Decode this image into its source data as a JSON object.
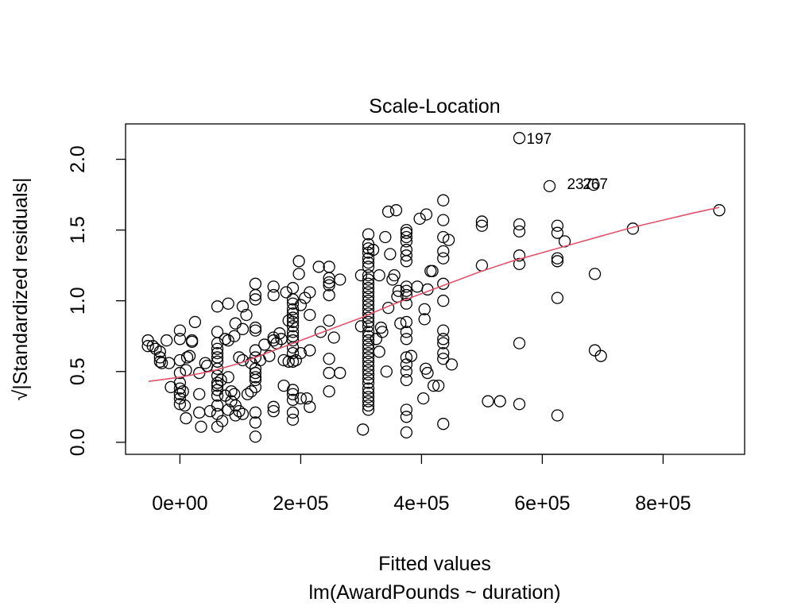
{
  "chart_data": {
    "type": "scatter",
    "title": "Scale-Location",
    "xlabel": "Fitted values",
    "subtitle": "lm(AwardPounds ~ duration)",
    "ylabel": "√|Standardized residuals|",
    "xlim": [
      -90000,
      935000
    ],
    "ylim": [
      -0.085,
      2.25
    ],
    "x_ticks": [
      0,
      200000,
      400000,
      600000,
      800000
    ],
    "x_tick_labels": [
      "0e+00",
      "2e+05",
      "4e+05",
      "6e+05",
      "8e+05"
    ],
    "y_ticks": [
      0.0,
      0.5,
      1.0,
      1.5,
      2.0
    ],
    "y_tick_labels": [
      "0.0",
      "0.5",
      "1.0",
      "1.5",
      "2.0"
    ],
    "grid": false,
    "colors": {
      "points": "#000000",
      "smoother": "#DF536B"
    },
    "annotations": [
      {
        "label": "197",
        "x": 562000,
        "y": 2.15
      },
      {
        "label": "237",
        "x": 629000,
        "y": 1.83
      },
      {
        "label": "267",
        "x": 655000,
        "y": 1.83
      }
    ],
    "smoother": {
      "name": "",
      "points": [
        [
          -52000,
          0.43
        ],
        [
          0,
          0.46
        ],
        [
          50000,
          0.5
        ],
        [
          100000,
          0.56
        ],
        [
          150000,
          0.64
        ],
        [
          200000,
          0.72
        ],
        [
          250000,
          0.8
        ],
        [
          300000,
          0.88
        ],
        [
          350000,
          0.97
        ],
        [
          400000,
          1.05
        ],
        [
          450000,
          1.13
        ],
        [
          500000,
          1.21
        ],
        [
          550000,
          1.28
        ],
        [
          600000,
          1.34
        ],
        [
          650000,
          1.4
        ],
        [
          700000,
          1.46
        ],
        [
          750000,
          1.52
        ],
        [
          800000,
          1.57
        ],
        [
          850000,
          1.62
        ],
        [
          893000,
          1.66
        ]
      ]
    },
    "points": [
      [
        -53000,
        0.72
      ],
      [
        -53000,
        0.68
      ],
      [
        -45000,
        0.68
      ],
      [
        -40000,
        0.66
      ],
      [
        -33000,
        0.64
      ],
      [
        -33000,
        0.6
      ],
      [
        -33000,
        0.57
      ],
      [
        -30000,
        0.56
      ],
      [
        -22000,
        0.72
      ],
      [
        -18000,
        0.56
      ],
      [
        -15000,
        0.39
      ],
      [
        0,
        0.79
      ],
      [
        0,
        0.73
      ],
      [
        0,
        0.58
      ],
      [
        0,
        0.49
      ],
      [
        0,
        0.42
      ],
      [
        0,
        0.38
      ],
      [
        0,
        0.34
      ],
      [
        0,
        0.31
      ],
      [
        0,
        0.27
      ],
      [
        5000,
        0.36
      ],
      [
        8000,
        0.26
      ],
      [
        10000,
        0.51
      ],
      [
        10000,
        0.17
      ],
      [
        12000,
        0.6
      ],
      [
        16000,
        0.61
      ],
      [
        20000,
        0.72
      ],
      [
        20000,
        0.71
      ],
      [
        25000,
        0.85
      ],
      [
        32000,
        0.49
      ],
      [
        32000,
        0.34
      ],
      [
        32000,
        0.21
      ],
      [
        35000,
        0.11
      ],
      [
        42000,
        0.56
      ],
      [
        45000,
        0.54
      ],
      [
        50000,
        0.22
      ],
      [
        62000,
        0.96
      ],
      [
        62000,
        0.78
      ],
      [
        62000,
        0.7
      ],
      [
        62000,
        0.66
      ],
      [
        62000,
        0.63
      ],
      [
        62000,
        0.6
      ],
      [
        62000,
        0.57
      ],
      [
        62000,
        0.52
      ],
      [
        62000,
        0.47
      ],
      [
        62000,
        0.42
      ],
      [
        62000,
        0.4
      ],
      [
        62000,
        0.37
      ],
      [
        62000,
        0.33
      ],
      [
        62000,
        0.26
      ],
      [
        62000,
        0.2
      ],
      [
        62000,
        0.11
      ],
      [
        68000,
        0.44
      ],
      [
        70000,
        0.15
      ],
      [
        75000,
        0.73
      ],
      [
        75000,
        0.33
      ],
      [
        80000,
        0.98
      ],
      [
        80000,
        0.72
      ],
      [
        80000,
        0.46
      ],
      [
        80000,
        0.23
      ],
      [
        85000,
        0.36
      ],
      [
        85000,
        0.29
      ],
      [
        90000,
        0.75
      ],
      [
        90000,
        0.34
      ],
      [
        92000,
        0.84
      ],
      [
        92000,
        0.26
      ],
      [
        92000,
        0.19
      ],
      [
        98000,
        0.6
      ],
      [
        98000,
        0.22
      ],
      [
        104000,
        0.96
      ],
      [
        104000,
        0.8
      ],
      [
        104000,
        0.58
      ],
      [
        104000,
        0.2
      ],
      [
        110000,
        0.9
      ],
      [
        112000,
        0.34
      ],
      [
        118000,
        0.36
      ],
      [
        118000,
        0.56
      ],
      [
        125000,
        1.12
      ],
      [
        125000,
        1.04
      ],
      [
        125000,
        1.01
      ],
      [
        125000,
        0.81
      ],
      [
        125000,
        0.79
      ],
      [
        125000,
        0.65
      ],
      [
        125000,
        0.6
      ],
      [
        125000,
        0.52
      ],
      [
        125000,
        0.49
      ],
      [
        125000,
        0.46
      ],
      [
        125000,
        0.44
      ],
      [
        125000,
        0.39
      ],
      [
        125000,
        0.21
      ],
      [
        125000,
        0.14
      ],
      [
        125000,
        0.04
      ],
      [
        133000,
        0.58
      ],
      [
        140000,
        0.69
      ],
      [
        148000,
        0.61
      ],
      [
        155000,
        1.1
      ],
      [
        155000,
        1.04
      ],
      [
        155000,
        0.74
      ],
      [
        155000,
        0.72
      ],
      [
        155000,
        0.25
      ],
      [
        155000,
        0.22
      ],
      [
        160000,
        0.7
      ],
      [
        165000,
        0.77
      ],
      [
        168000,
        0.73
      ],
      [
        172000,
        0.4
      ],
      [
        172000,
        0.58
      ],
      [
        176000,
        1.06
      ],
      [
        180000,
        0.86
      ],
      [
        180000,
        0.57
      ],
      [
        187000,
        1.09
      ],
      [
        187000,
        1.01
      ],
      [
        187000,
        0.98
      ],
      [
        187000,
        0.94
      ],
      [
        187000,
        0.91
      ],
      [
        187000,
        0.88
      ],
      [
        187000,
        0.85
      ],
      [
        187000,
        0.82
      ],
      [
        187000,
        0.78
      ],
      [
        187000,
        0.75
      ],
      [
        187000,
        0.72
      ],
      [
        187000,
        0.67
      ],
      [
        187000,
        0.63
      ],
      [
        187000,
        0.57
      ],
      [
        187000,
        0.37
      ],
      [
        187000,
        0.34
      ],
      [
        187000,
        0.3
      ],
      [
        187000,
        0.21
      ],
      [
        187000,
        0.16
      ],
      [
        192000,
        0.58
      ],
      [
        197000,
        1.28
      ],
      [
        197000,
        1.19
      ],
      [
        200000,
        0.97
      ],
      [
        200000,
        0.63
      ],
      [
        200000,
        0.31
      ],
      [
        207000,
        1.02
      ],
      [
        210000,
        0.31
      ],
      [
        215000,
        1.06
      ],
      [
        215000,
        0.9
      ],
      [
        215000,
        0.65
      ],
      [
        215000,
        0.25
      ],
      [
        230000,
        1.24
      ],
      [
        233000,
        0.78
      ],
      [
        247000,
        1.24
      ],
      [
        247000,
        1.16
      ],
      [
        247000,
        1.13
      ],
      [
        247000,
        1.11
      ],
      [
        247000,
        1.04
      ],
      [
        247000,
        0.86
      ],
      [
        247000,
        0.59
      ],
      [
        247000,
        0.49
      ],
      [
        247000,
        0.36
      ],
      [
        255000,
        0.74
      ],
      [
        265000,
        1.15
      ],
      [
        265000,
        0.49
      ],
      [
        300000,
        0.82
      ],
      [
        300000,
        1.18
      ],
      [
        303000,
        0.09
      ],
      [
        312000,
        1.47
      ],
      [
        312000,
        1.4
      ],
      [
        312000,
        1.37
      ],
      [
        312000,
        1.34
      ],
      [
        312000,
        1.3
      ],
      [
        312000,
        1.27
      ],
      [
        312000,
        1.24
      ],
      [
        312000,
        1.18
      ],
      [
        312000,
        1.15
      ],
      [
        312000,
        1.12
      ],
      [
        312000,
        1.09
      ],
      [
        312000,
        1.06
      ],
      [
        312000,
        1.03
      ],
      [
        312000,
        1.0
      ],
      [
        312000,
        0.97
      ],
      [
        312000,
        0.94
      ],
      [
        312000,
        0.91
      ],
      [
        312000,
        0.88
      ],
      [
        312000,
        0.85
      ],
      [
        312000,
        0.82
      ],
      [
        312000,
        0.78
      ],
      [
        312000,
        0.75
      ],
      [
        312000,
        0.72
      ],
      [
        312000,
        0.69
      ],
      [
        312000,
        0.66
      ],
      [
        312000,
        0.63
      ],
      [
        312000,
        0.6
      ],
      [
        312000,
        0.57
      ],
      [
        312000,
        0.54
      ],
      [
        312000,
        0.51
      ],
      [
        312000,
        0.48
      ],
      [
        312000,
        0.45
      ],
      [
        312000,
        0.42
      ],
      [
        312000,
        0.38
      ],
      [
        312000,
        0.35
      ],
      [
        312000,
        0.32
      ],
      [
        312000,
        0.29
      ],
      [
        312000,
        0.26
      ],
      [
        312000,
        0.23
      ],
      [
        320000,
        1.36
      ],
      [
        325000,
        0.73
      ],
      [
        330000,
        0.64
      ],
      [
        330000,
        1.18
      ],
      [
        333000,
        0.81
      ],
      [
        335000,
        0.78
      ],
      [
        340000,
        1.45
      ],
      [
        342000,
        0.5
      ],
      [
        345000,
        1.63
      ],
      [
        345000,
        0.95
      ],
      [
        348000,
        1.33
      ],
      [
        352000,
        1.15
      ],
      [
        355000,
        1.18
      ],
      [
        358000,
        1.64
      ],
      [
        360000,
        1.03
      ],
      [
        362000,
        1.07
      ],
      [
        365000,
        0.84
      ],
      [
        375000,
        1.5
      ],
      [
        375000,
        1.48
      ],
      [
        375000,
        1.45
      ],
      [
        375000,
        1.42
      ],
      [
        375000,
        1.36
      ],
      [
        375000,
        1.32
      ],
      [
        375000,
        1.28
      ],
      [
        375000,
        1.1
      ],
      [
        375000,
        1.07
      ],
      [
        375000,
        1.04
      ],
      [
        375000,
        0.98
      ],
      [
        375000,
        0.85
      ],
      [
        375000,
        0.78
      ],
      [
        375000,
        0.73
      ],
      [
        375000,
        0.6
      ],
      [
        375000,
        0.55
      ],
      [
        375000,
        0.5
      ],
      [
        375000,
        0.44
      ],
      [
        375000,
        0.23
      ],
      [
        375000,
        0.18
      ],
      [
        375000,
        0.07
      ],
      [
        383000,
        0.61
      ],
      [
        393000,
        1.1
      ],
      [
        397000,
        1.58
      ],
      [
        403000,
        0.31
      ],
      [
        405000,
        0.94
      ],
      [
        405000,
        0.87
      ],
      [
        407000,
        0.52
      ],
      [
        408000,
        1.61
      ],
      [
        410000,
        0.49
      ],
      [
        410000,
        1.08
      ],
      [
        415000,
        1.21
      ],
      [
        418000,
        1.21
      ],
      [
        420000,
        0.4
      ],
      [
        428000,
        0.4
      ],
      [
        436000,
        1.71
      ],
      [
        436000,
        1.57
      ],
      [
        436000,
        1.45
      ],
      [
        436000,
        1.35
      ],
      [
        436000,
        1.3
      ],
      [
        436000,
        1.12
      ],
      [
        436000,
        1.0
      ],
      [
        436000,
        0.79
      ],
      [
        436000,
        0.73
      ],
      [
        436000,
        0.7
      ],
      [
        436000,
        0.63
      ],
      [
        436000,
        0.59
      ],
      [
        436000,
        0.13
      ],
      [
        445000,
        1.43
      ],
      [
        450000,
        0.55
      ],
      [
        500000,
        1.56
      ],
      [
        500000,
        1.53
      ],
      [
        500000,
        1.25
      ],
      [
        510000,
        0.29
      ],
      [
        530000,
        0.29
      ],
      [
        562000,
        1.54
      ],
      [
        562000,
        1.49
      ],
      [
        562000,
        1.32
      ],
      [
        562000,
        1.26
      ],
      [
        562000,
        0.7
      ],
      [
        562000,
        0.27
      ],
      [
        562000,
        2.15
      ],
      [
        612000,
        1.81
      ],
      [
        625000,
        1.53
      ],
      [
        625000,
        1.48
      ],
      [
        625000,
        1.3
      ],
      [
        625000,
        1.28
      ],
      [
        625000,
        1.02
      ],
      [
        625000,
        0.19
      ],
      [
        637000,
        1.42
      ],
      [
        685000,
        1.82
      ],
      [
        687000,
        1.19
      ],
      [
        687000,
        0.65
      ],
      [
        697000,
        0.61
      ],
      [
        750000,
        1.51
      ],
      [
        893000,
        1.64
      ]
    ]
  }
}
